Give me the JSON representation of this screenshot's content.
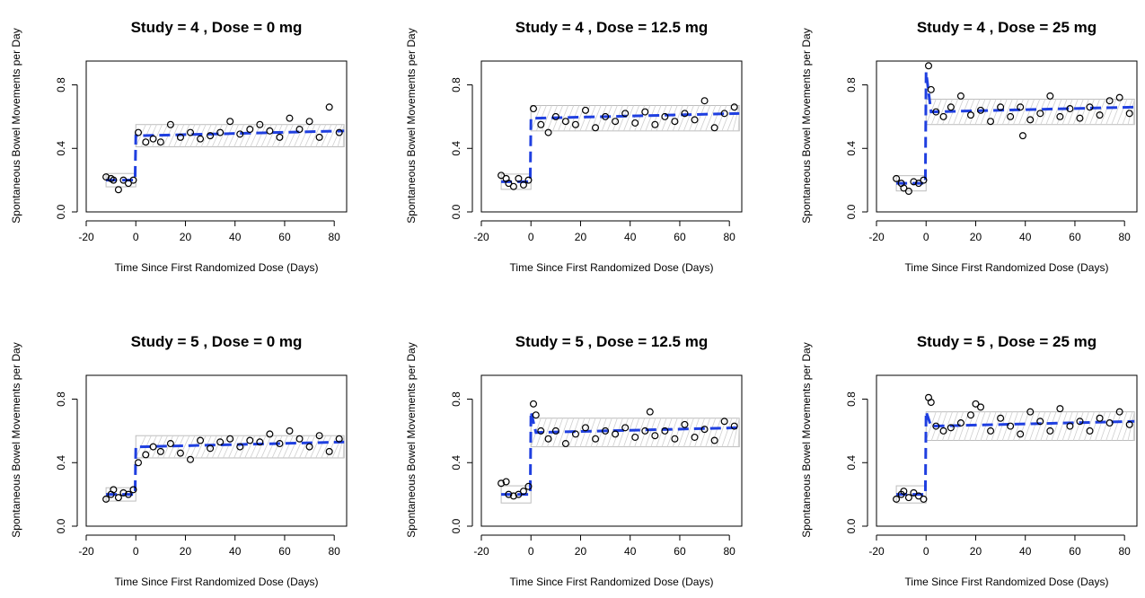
{
  "chart_data": [
    {
      "type": "scatter",
      "title": "Study = 4 , Dose = 0  mg",
      "xlabel": "Time Since First Randomized Dose (Days)",
      "ylabel": "Spontaneous Bowel Movements per Day",
      "xlim": [
        -20,
        85
      ],
      "ylim": [
        0,
        0.95
      ],
      "xticks": [
        "-20",
        "0",
        "20",
        "40",
        "60",
        "80"
      ],
      "yticks": [
        "0.0",
        "0.4",
        "0.8"
      ],
      "baseline": 0.2,
      "plateau": 0.48,
      "peak": 0.48,
      "band_halfwidth": 0.07,
      "series": [
        {
          "values_x": [
            -12,
            -10,
            -9,
            -7,
            -5,
            -3,
            -1,
            1,
            4,
            7,
            10,
            14,
            18,
            22,
            26,
            30,
            34,
            38,
            42,
            46,
            50,
            54,
            58,
            62,
            66,
            70,
            74,
            78,
            82
          ],
          "values_y": [
            0.22,
            0.21,
            0.2,
            0.14,
            0.2,
            0.18,
            0.2,
            0.5,
            0.44,
            0.46,
            0.44,
            0.55,
            0.47,
            0.5,
            0.46,
            0.48,
            0.5,
            0.57,
            0.49,
            0.52,
            0.55,
            0.51,
            0.47,
            0.59,
            0.52,
            0.57,
            0.47,
            0.66,
            0.5
          ]
        }
      ]
    },
    {
      "type": "scatter",
      "title": "Study = 4 , Dose = 12.5  mg",
      "xlabel": "Time Since First Randomized Dose (Days)",
      "ylabel": "Spontaneous Bowel Movements per Day",
      "xlim": [
        -20,
        85
      ],
      "ylim": [
        0,
        0.95
      ],
      "xticks": [
        "-20",
        "0",
        "20",
        "40",
        "60",
        "80"
      ],
      "yticks": [
        "0.0",
        "0.4",
        "0.8"
      ],
      "baseline": 0.19,
      "plateau": 0.59,
      "peak": 0.59,
      "band_halfwidth": 0.08,
      "series": [
        {
          "values_x": [
            -12,
            -10,
            -9,
            -7,
            -5,
            -3,
            -1,
            1,
            4,
            7,
            10,
            14,
            18,
            22,
            26,
            30,
            34,
            38,
            42,
            46,
            50,
            54,
            58,
            62,
            66,
            70,
            74,
            78,
            82
          ],
          "values_y": [
            0.23,
            0.21,
            0.18,
            0.16,
            0.21,
            0.17,
            0.2,
            0.65,
            0.55,
            0.5,
            0.6,
            0.57,
            0.55,
            0.64,
            0.53,
            0.6,
            0.57,
            0.62,
            0.56,
            0.63,
            0.55,
            0.6,
            0.57,
            0.62,
            0.58,
            0.7,
            0.53,
            0.62,
            0.66
          ]
        }
      ]
    },
    {
      "type": "scatter",
      "title": "Study = 4 , Dose = 25  mg",
      "xlabel": "Time Since First Randomized Dose (Days)",
      "ylabel": "Spontaneous Bowel Movements per Day",
      "xlim": [
        -20,
        85
      ],
      "ylim": [
        0,
        0.95
      ],
      "xticks": [
        "-20",
        "0",
        "20",
        "40",
        "60",
        "80"
      ],
      "yticks": [
        "0.0",
        "0.4",
        "0.8"
      ],
      "baseline": 0.18,
      "plateau": 0.63,
      "peak": 0.88,
      "band_halfwidth": 0.08,
      "series": [
        {
          "values_x": [
            -12,
            -10,
            -9,
            -7,
            -5,
            -3,
            -1,
            1,
            2,
            4,
            7,
            10,
            14,
            18,
            22,
            26,
            30,
            34,
            38,
            39,
            42,
            46,
            50,
            54,
            58,
            62,
            66,
            70,
            74,
            78,
            82
          ],
          "values_y": [
            0.21,
            0.18,
            0.15,
            0.13,
            0.19,
            0.18,
            0.2,
            0.92,
            0.77,
            0.63,
            0.6,
            0.66,
            0.73,
            0.61,
            0.64,
            0.57,
            0.66,
            0.6,
            0.66,
            0.48,
            0.58,
            0.62,
            0.73,
            0.6,
            0.65,
            0.59,
            0.66,
            0.61,
            0.7,
            0.72,
            0.62
          ]
        }
      ]
    },
    {
      "type": "scatter",
      "title": "Study = 5 , Dose = 0  mg",
      "xlabel": "Time Since First Randomized Dose (Days)",
      "ylabel": "Spontaneous Bowel Movements per Day",
      "xlim": [
        -20,
        85
      ],
      "ylim": [
        0,
        0.95
      ],
      "xticks": [
        "-20",
        "0",
        "20",
        "40",
        "60",
        "80"
      ],
      "yticks": [
        "0.0",
        "0.4",
        "0.8"
      ],
      "baseline": 0.2,
      "plateau": 0.5,
      "peak": 0.5,
      "band_halfwidth": 0.07,
      "series": [
        {
          "values_x": [
            -12,
            -10,
            -9,
            -7,
            -5,
            -3,
            -1,
            1,
            4,
            7,
            10,
            14,
            18,
            22,
            26,
            30,
            34,
            38,
            42,
            46,
            50,
            54,
            58,
            62,
            66,
            70,
            74,
            78,
            82
          ],
          "values_y": [
            0.17,
            0.2,
            0.23,
            0.18,
            0.21,
            0.2,
            0.23,
            0.4,
            0.45,
            0.5,
            0.47,
            0.52,
            0.46,
            0.42,
            0.54,
            0.49,
            0.53,
            0.55,
            0.5,
            0.54,
            0.53,
            0.58,
            0.52,
            0.6,
            0.55,
            0.5,
            0.57,
            0.47,
            0.55
          ]
        }
      ]
    },
    {
      "type": "scatter",
      "title": "Study = 5 , Dose = 12.5  mg",
      "xlabel": "Time Since First Randomized Dose (Days)",
      "ylabel": "Spontaneous Bowel Movements per Day",
      "xlim": [
        -20,
        85
      ],
      "ylim": [
        0,
        0.95
      ],
      "xticks": [
        "-20",
        "0",
        "20",
        "40",
        "60",
        "80"
      ],
      "yticks": [
        "0.0",
        "0.4",
        "0.8"
      ],
      "baseline": 0.2,
      "plateau": 0.59,
      "peak": 0.72,
      "band_halfwidth": 0.09,
      "series": [
        {
          "values_x": [
            -12,
            -10,
            -9,
            -7,
            -5,
            -3,
            -1,
            1,
            2,
            4,
            7,
            10,
            14,
            18,
            22,
            26,
            30,
            34,
            38,
            42,
            46,
            48,
            50,
            54,
            58,
            62,
            66,
            70,
            74,
            78,
            82
          ],
          "values_y": [
            0.27,
            0.28,
            0.2,
            0.19,
            0.2,
            0.22,
            0.25,
            0.77,
            0.7,
            0.6,
            0.55,
            0.6,
            0.52,
            0.58,
            0.62,
            0.55,
            0.6,
            0.58,
            0.62,
            0.56,
            0.6,
            0.72,
            0.57,
            0.6,
            0.55,
            0.64,
            0.56,
            0.61,
            0.54,
            0.66,
            0.63
          ]
        }
      ]
    },
    {
      "type": "scatter",
      "title": "Study = 5 , Dose = 25  mg",
      "xlabel": "Time Since First Randomized Dose (Days)",
      "ylabel": "Spontaneous Bowel Movements per Day",
      "xlim": [
        -20,
        85
      ],
      "ylim": [
        0,
        0.95
      ],
      "xticks": [
        "-20",
        "0",
        "20",
        "40",
        "60",
        "80"
      ],
      "yticks": [
        "0.0",
        "0.4",
        "0.8"
      ],
      "baseline": 0.2,
      "plateau": 0.63,
      "peak": 0.72,
      "band_halfwidth": 0.09,
      "series": [
        {
          "values_x": [
            -12,
            -10,
            -9,
            -7,
            -5,
            -3,
            -1,
            1,
            2,
            4,
            7,
            10,
            14,
            18,
            20,
            22,
            26,
            30,
            34,
            38,
            42,
            46,
            50,
            54,
            58,
            62,
            66,
            70,
            74,
            78,
            82
          ],
          "values_y": [
            0.17,
            0.2,
            0.22,
            0.18,
            0.21,
            0.19,
            0.17,
            0.81,
            0.78,
            0.63,
            0.6,
            0.62,
            0.65,
            0.7,
            0.77,
            0.75,
            0.6,
            0.68,
            0.63,
            0.58,
            0.72,
            0.66,
            0.6,
            0.74,
            0.63,
            0.66,
            0.6,
            0.68,
            0.65,
            0.72,
            0.64
          ]
        }
      ]
    }
  ]
}
